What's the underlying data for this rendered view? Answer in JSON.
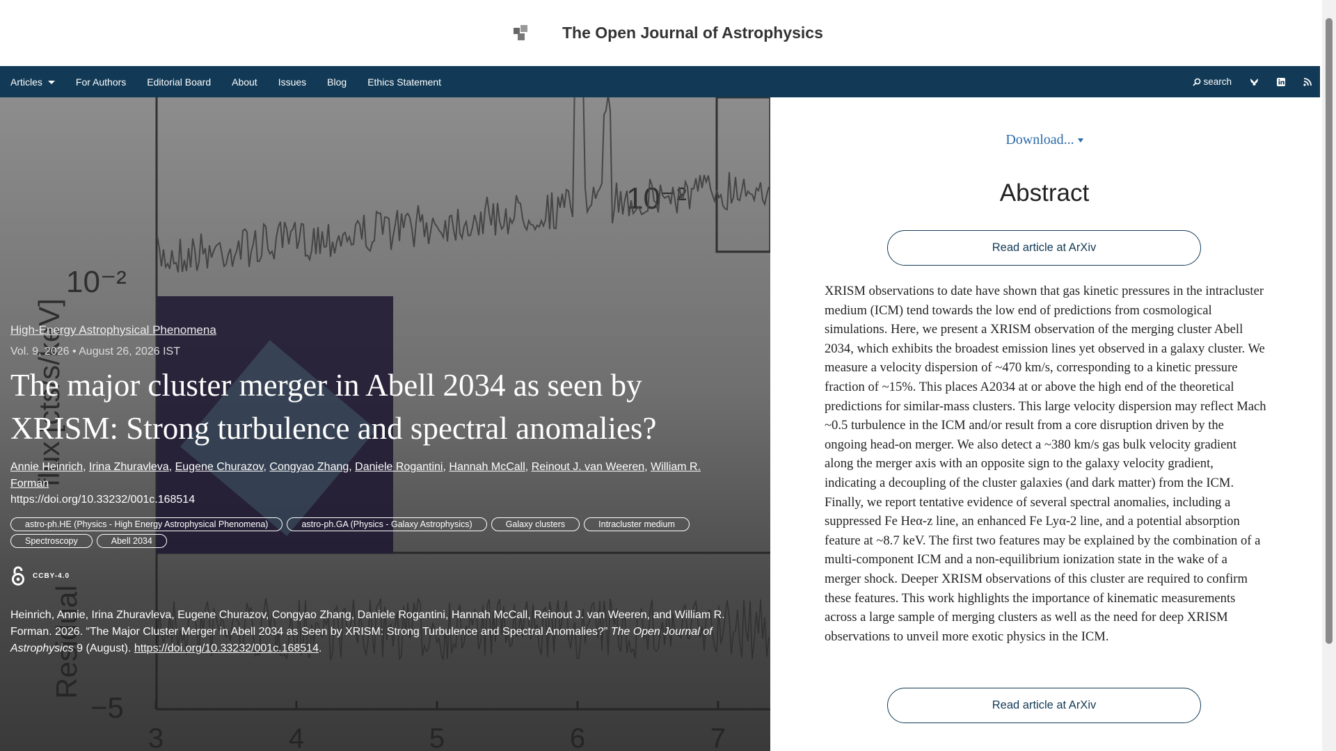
{
  "header": {
    "site_title": "The Open Journal of Astrophysics"
  },
  "nav": {
    "items": [
      "Articles",
      "For Authors",
      "Editorial Board",
      "About",
      "Issues",
      "Blog",
      "Ethics Statement"
    ],
    "search": "search"
  },
  "article": {
    "category": "High-Energy Astrophysical Phenomena",
    "volume_date": "Vol. 9, 2026 • August 26, 2026 IST",
    "title": "The major cluster merger in Abell 2034 as seen by XRISM: Strong turbulence and spectral anomalies?",
    "authors": [
      "Annie Heinrich",
      "Irina Zhuravleva",
      "Eugene Churazov",
      "Congyao Zhang",
      "Daniele Rogantini",
      "Hannah McCall",
      "Reinout J. van Weeren",
      "William R. Forman"
    ],
    "author_separator": ",",
    "doi": "https://doi.org/10.33232/001c.168514",
    "tags": [
      "astro-ph.HE (Physics - High Energy Astrophysical Phenomena)",
      "astro-ph.GA (Physics - Galaxy Astrophysics)",
      "Galaxy clusters",
      "Intracluster medium",
      "Spectroscopy",
      "Abell 2034"
    ],
    "license": "CCBY-4.0",
    "citation": {
      "text": "Heinrich, Annie, Irina Zhuravleva, Eugene Churazov, Congyao Zhang, Daniele Rogantini, Hannah McCall, Reinout J. van Weeren, and William R. Forman. 2026. “The Major Cluster Merger in Abell 2034 as Seen by XRISM: Strong Turbulence and Spectral Anomalies?”",
      "journal": "The Open Journal of Astrophysics",
      "issue": "9 (August).",
      "doi": "https://doi.org/10.33232/001c.168514",
      "end": "."
    }
  },
  "abstract_panel": {
    "download": "Download...",
    "heading": "Abstract",
    "read_button": "Read article at ArXiv",
    "text": "XRISM observations to date have shown that gas kinetic pressures in the intracluster medium (ICM) tend towards the low end of predictions from cosmological simulations. Here, we present a XRISM observation of the merging cluster Abell 2034, which exhibits the broadest emission lines yet observed in a galaxy cluster. We measure a velocity dispersion of ~470 km/s, corresponding to a kinetic pressure fraction of ~15%. This places A2034 at or above the high end of the theoretical predictions for similar-mass clusters. This large velocity dispersion may reflect Mach ~0.5 turbulence in the ICM and/or result from a core disruption driven by the ongoing head-on merger. We also detect a ~380 km/s gas bulk velocity gradient along the merger axis with an opposite sign to the galaxy velocity gradient, indicating a decoupling of the cluster galaxies (and dark matter) from the ICM. Finally, we report tentative evidence of several spectral anomalies, including a suppressed Fe Heα-z line, an enhanced Fe Lyα-2 line, and a potential absorption feature at ~8.7 keV. The first two features may be explained by the combination of a multi-component ICM and a non-equilibrium ionization state in the wake of a merger shock. Deeper XRISM observations of this cluster are required to confirm these features. This work highlights the importance of kinematic measurements across a large sample of merging clusters as well as the need for deep XRISM observations to unveil more exotic physics in the ICM.",
    "read_button_bottom": "Read article at ArXiv"
  },
  "background_figure": {
    "y_label": "flux [cts/s/keV]",
    "residual_label": "Residual",
    "tick_main": "10⁻²",
    "tick_inset": "10⁻²",
    "tick_residual": "−5",
    "x_ticks": [
      "3",
      "4",
      "5",
      "6",
      "7"
    ]
  }
}
